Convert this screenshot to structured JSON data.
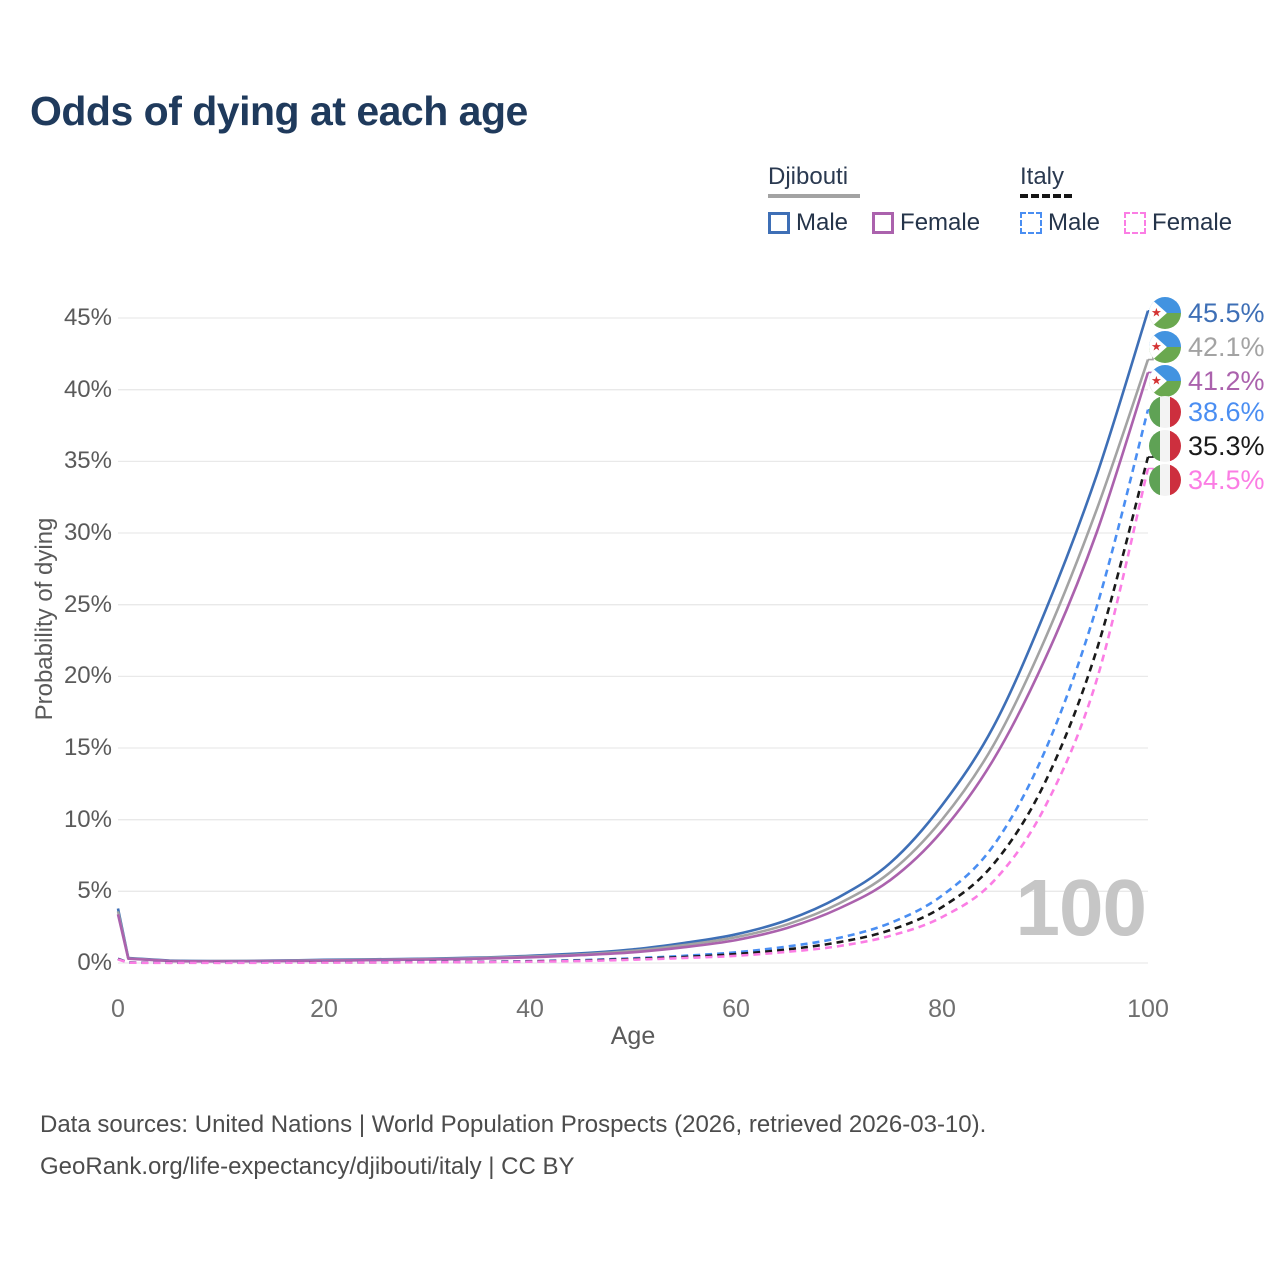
{
  "title": "Odds of dying at each age",
  "legend": {
    "groups": [
      {
        "country": "Djibouti",
        "line_style": "solid",
        "underline_color": "#a3a3a3",
        "items": [
          {
            "label": "Male",
            "color": "#3e6fb6"
          },
          {
            "label": "Female",
            "color": "#ab62ad"
          }
        ]
      },
      {
        "country": "Italy",
        "line_style": "dashed",
        "underline_color": "#151515",
        "items": [
          {
            "label": "Male",
            "color": "#4a8ef2"
          },
          {
            "label": "Female",
            "color": "#fb7de4"
          }
        ]
      }
    ]
  },
  "annotations": {
    "age_counter": "100"
  },
  "end_labels": [
    {
      "value": "45.5%",
      "color": "#3e6fb6",
      "flag": "djibouti"
    },
    {
      "value": "42.1%",
      "color": "#a3a3a3",
      "flag": "djibouti"
    },
    {
      "value": "41.2%",
      "color": "#ab62ad",
      "flag": "djibouti"
    },
    {
      "value": "38.6%",
      "color": "#4a8ef2",
      "flag": "italy"
    },
    {
      "value": "35.3%",
      "color": "#1a1a1a",
      "flag": "italy"
    },
    {
      "value": "34.5%",
      "color": "#fb7de4",
      "flag": "italy"
    }
  ],
  "footer": {
    "line1": "Data sources: United Nations | World Population Prospects (2026, retrieved 2026-03-10).",
    "line2": "GeoRank.org/life-expectancy/djibouti/italy | CC BY"
  },
  "chart_data": {
    "type": "line",
    "title": "Odds of dying at each age",
    "xlabel": "Age",
    "ylabel": "Probability of dying",
    "xlim": [
      0,
      100
    ],
    "ylim": [
      0,
      46
    ],
    "grid": "horizontal",
    "legend_position": "top-right",
    "x_ages": [
      0,
      1,
      5,
      10,
      15,
      20,
      25,
      30,
      35,
      40,
      45,
      50,
      55,
      60,
      65,
      70,
      75,
      80,
      85,
      90,
      95,
      100
    ],
    "xticks": [
      {
        "value": 0,
        "label": "0"
      },
      {
        "value": 20,
        "label": "20"
      },
      {
        "value": 40,
        "label": "40"
      },
      {
        "value": 60,
        "label": "60"
      },
      {
        "value": 80,
        "label": "80"
      },
      {
        "value": 100,
        "label": "100"
      }
    ],
    "yticks": [
      {
        "value": 0,
        "label": "0%"
      },
      {
        "value": 5,
        "label": "5%"
      },
      {
        "value": 10,
        "label": "10%"
      },
      {
        "value": 15,
        "label": "15%"
      },
      {
        "value": 20,
        "label": "20%"
      },
      {
        "value": 25,
        "label": "25%"
      },
      {
        "value": 30,
        "label": "30%"
      },
      {
        "value": 35,
        "label": "35%"
      },
      {
        "value": 40,
        "label": "40%"
      },
      {
        "value": 45,
        "label": "45%"
      }
    ],
    "series": [
      {
        "name": "Djibouti Male",
        "country": "Djibouti",
        "sex": "Male",
        "style": "solid",
        "color": "#3e6fb6",
        "end_value_pct": 45.5,
        "end_label": "45.5%",
        "values": [
          3.8,
          0.35,
          0.17,
          0.14,
          0.17,
          0.22,
          0.26,
          0.3,
          0.38,
          0.5,
          0.68,
          0.95,
          1.4,
          2.0,
          3.0,
          4.6,
          7.0,
          11.0,
          16.5,
          24.5,
          34.0,
          45.5
        ]
      },
      {
        "name": "Djibouti Both sexes",
        "country": "Djibouti",
        "sex": "Both sexes",
        "style": "solid",
        "color": "#a3a3a3",
        "end_value_pct": 42.1,
        "end_label": "42.1%",
        "values": [
          3.6,
          0.32,
          0.15,
          0.13,
          0.15,
          0.19,
          0.23,
          0.27,
          0.34,
          0.45,
          0.6,
          0.85,
          1.25,
          1.8,
          2.7,
          4.15,
          6.35,
          10.0,
          15.2,
          22.6,
          31.6,
          42.1
        ]
      },
      {
        "name": "Djibouti Female",
        "country": "Djibouti",
        "sex": "Female",
        "style": "solid",
        "color": "#ab62ad",
        "end_value_pct": 41.2,
        "end_label": "41.2%",
        "values": [
          3.4,
          0.3,
          0.14,
          0.12,
          0.13,
          0.16,
          0.2,
          0.24,
          0.3,
          0.4,
          0.55,
          0.75,
          1.1,
          1.6,
          2.45,
          3.8,
          5.8,
          9.2,
          14.2,
          21.2,
          30.0,
          41.2
        ]
      },
      {
        "name": "Italy Male",
        "country": "Italy",
        "sex": "Male",
        "style": "dashed",
        "color": "#4a8ef2",
        "end_value_pct": 38.6,
        "end_label": "38.6%",
        "values": [
          0.3,
          0.03,
          0.02,
          0.02,
          0.04,
          0.06,
          0.06,
          0.07,
          0.09,
          0.13,
          0.2,
          0.33,
          0.5,
          0.75,
          1.15,
          1.75,
          2.8,
          4.7,
          8.2,
          14.8,
          24.8,
          38.6
        ]
      },
      {
        "name": "Italy Both sexes",
        "country": "Italy",
        "sex": "Both sexes",
        "style": "dashed",
        "color": "#1a1a1a",
        "end_value_pct": 35.3,
        "end_label": "35.3%",
        "values": [
          0.28,
          0.03,
          0.02,
          0.02,
          0.03,
          0.05,
          0.05,
          0.06,
          0.08,
          0.11,
          0.17,
          0.28,
          0.42,
          0.62,
          0.95,
          1.45,
          2.3,
          3.9,
          6.9,
          12.6,
          21.8,
          35.3
        ]
      },
      {
        "name": "Italy Female",
        "country": "Italy",
        "sex": "Female",
        "style": "dashed",
        "color": "#fb7de4",
        "end_value_pct": 34.5,
        "end_label": "34.5%",
        "values": [
          0.25,
          0.02,
          0.01,
          0.01,
          0.02,
          0.03,
          0.04,
          0.05,
          0.07,
          0.09,
          0.14,
          0.23,
          0.35,
          0.5,
          0.78,
          1.18,
          1.9,
          3.2,
          5.7,
          10.9,
          19.7,
          34.5
        ]
      }
    ]
  }
}
